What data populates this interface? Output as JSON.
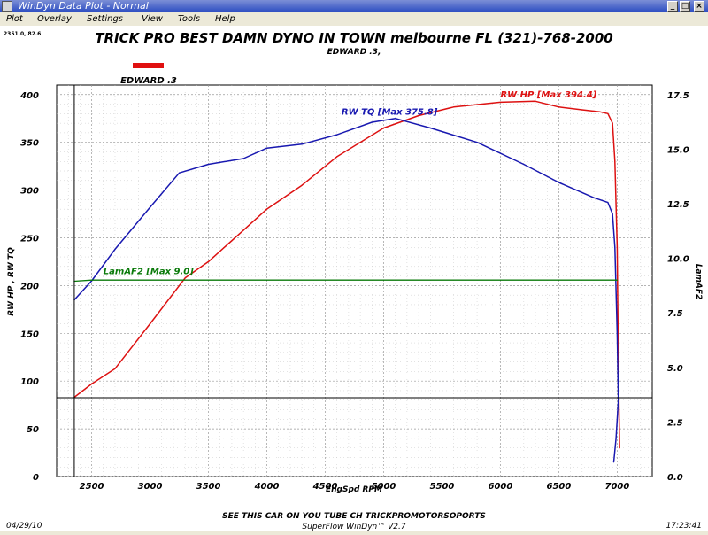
{
  "window": {
    "title": "WinDyn Data Plot - Normal",
    "minimize_icon": "minimize-icon",
    "restore_icon": "restore-icon",
    "close_icon": "close-icon"
  },
  "menu": {
    "items": [
      "Plot",
      "Overlay",
      "Settings",
      "View",
      "Tools",
      "Help"
    ]
  },
  "header": {
    "title": "TRICK PRO BEST DAMN DYNO IN TOWN melbourne FL  (321)-768-2000",
    "subtitle": "EDWARD .3,",
    "corner_readout": "2351.0, 82.6"
  },
  "legend": {
    "run_label": "EDWARD .3",
    "run_color": "#e01010"
  },
  "footer": {
    "date": "04/29/10",
    "time": "17:23:41",
    "note": "SEE THIS CAR ON YOU TUBE CH TRICKPROMOTORSOPORTS",
    "software": "SuperFlow WinDyn™ V2.7"
  },
  "colors": {
    "hp": "#dd1111",
    "tq": "#1818b0",
    "afr": "#0a7a0a",
    "cursor": "#000000"
  },
  "chart_data": {
    "type": "line",
    "xlabel": "EngSpd  RPM",
    "ylabel_left": "RW HP , RW TQ",
    "ylabel_right": "LamAF2",
    "xlim": [
      2200,
      7300
    ],
    "ylim_left": [
      0,
      410
    ],
    "ylim_right": [
      0,
      17.9375
    ],
    "x_ticks": [
      2500,
      3000,
      3500,
      4000,
      4500,
      5000,
      5500,
      6000,
      6500,
      7000
    ],
    "y_ticks_left": [
      0,
      50,
      100,
      150,
      200,
      250,
      300,
      350,
      400
    ],
    "y_ticks_right": [
      0.0,
      2.5,
      5.0,
      7.5,
      10.0,
      12.5,
      15.0,
      17.5
    ],
    "cursor": {
      "rpm": 2351,
      "value": 82.6
    },
    "series": [
      {
        "name": "RW HP",
        "axis": "left",
        "color_key": "hp",
        "annotation": "RW HP  [Max   394.4]",
        "x": [
          2351,
          2500,
          2700,
          3000,
          3300,
          3500,
          3800,
          4000,
          4300,
          4600,
          5000,
          5300,
          5600,
          6000,
          6300,
          6500,
          6700,
          6850,
          6920,
          6960,
          6980,
          7000,
          7010,
          7020
        ],
        "values": [
          83,
          97,
          113,
          160,
          208,
          225,
          258,
          280,
          305,
          335,
          365,
          378,
          387,
          392,
          393,
          387,
          384,
          382,
          380,
          370,
          330,
          240,
          120,
          30
        ]
      },
      {
        "name": "RW TQ",
        "axis": "left",
        "color_key": "tq",
        "annotation": "RW TQ  [Max   375.8]",
        "x": [
          2351,
          2500,
          2700,
          3000,
          3250,
          3500,
          3800,
          4000,
          4300,
          4600,
          4900,
          5100,
          5400,
          5800,
          6200,
          6500,
          6800,
          6920,
          6960,
          6980,
          7000,
          7010,
          6990,
          6970
        ],
        "values": [
          185,
          205,
          238,
          282,
          318,
          327,
          333,
          344,
          348,
          358,
          371,
          375,
          365,
          350,
          327,
          308,
          292,
          287,
          275,
          240,
          150,
          80,
          40,
          15
        ]
      },
      {
        "name": "LamAF2",
        "axis": "right",
        "color_key": "afr",
        "annotation": "LamAF2 [Max    9.0]",
        "x": [
          2351,
          2500,
          3000,
          4000,
          5000,
          6000,
          6500,
          7000
        ],
        "values": [
          8.95,
          9.0,
          9.0,
          9.0,
          9.0,
          9.0,
          9.0,
          9.0
        ]
      }
    ]
  }
}
